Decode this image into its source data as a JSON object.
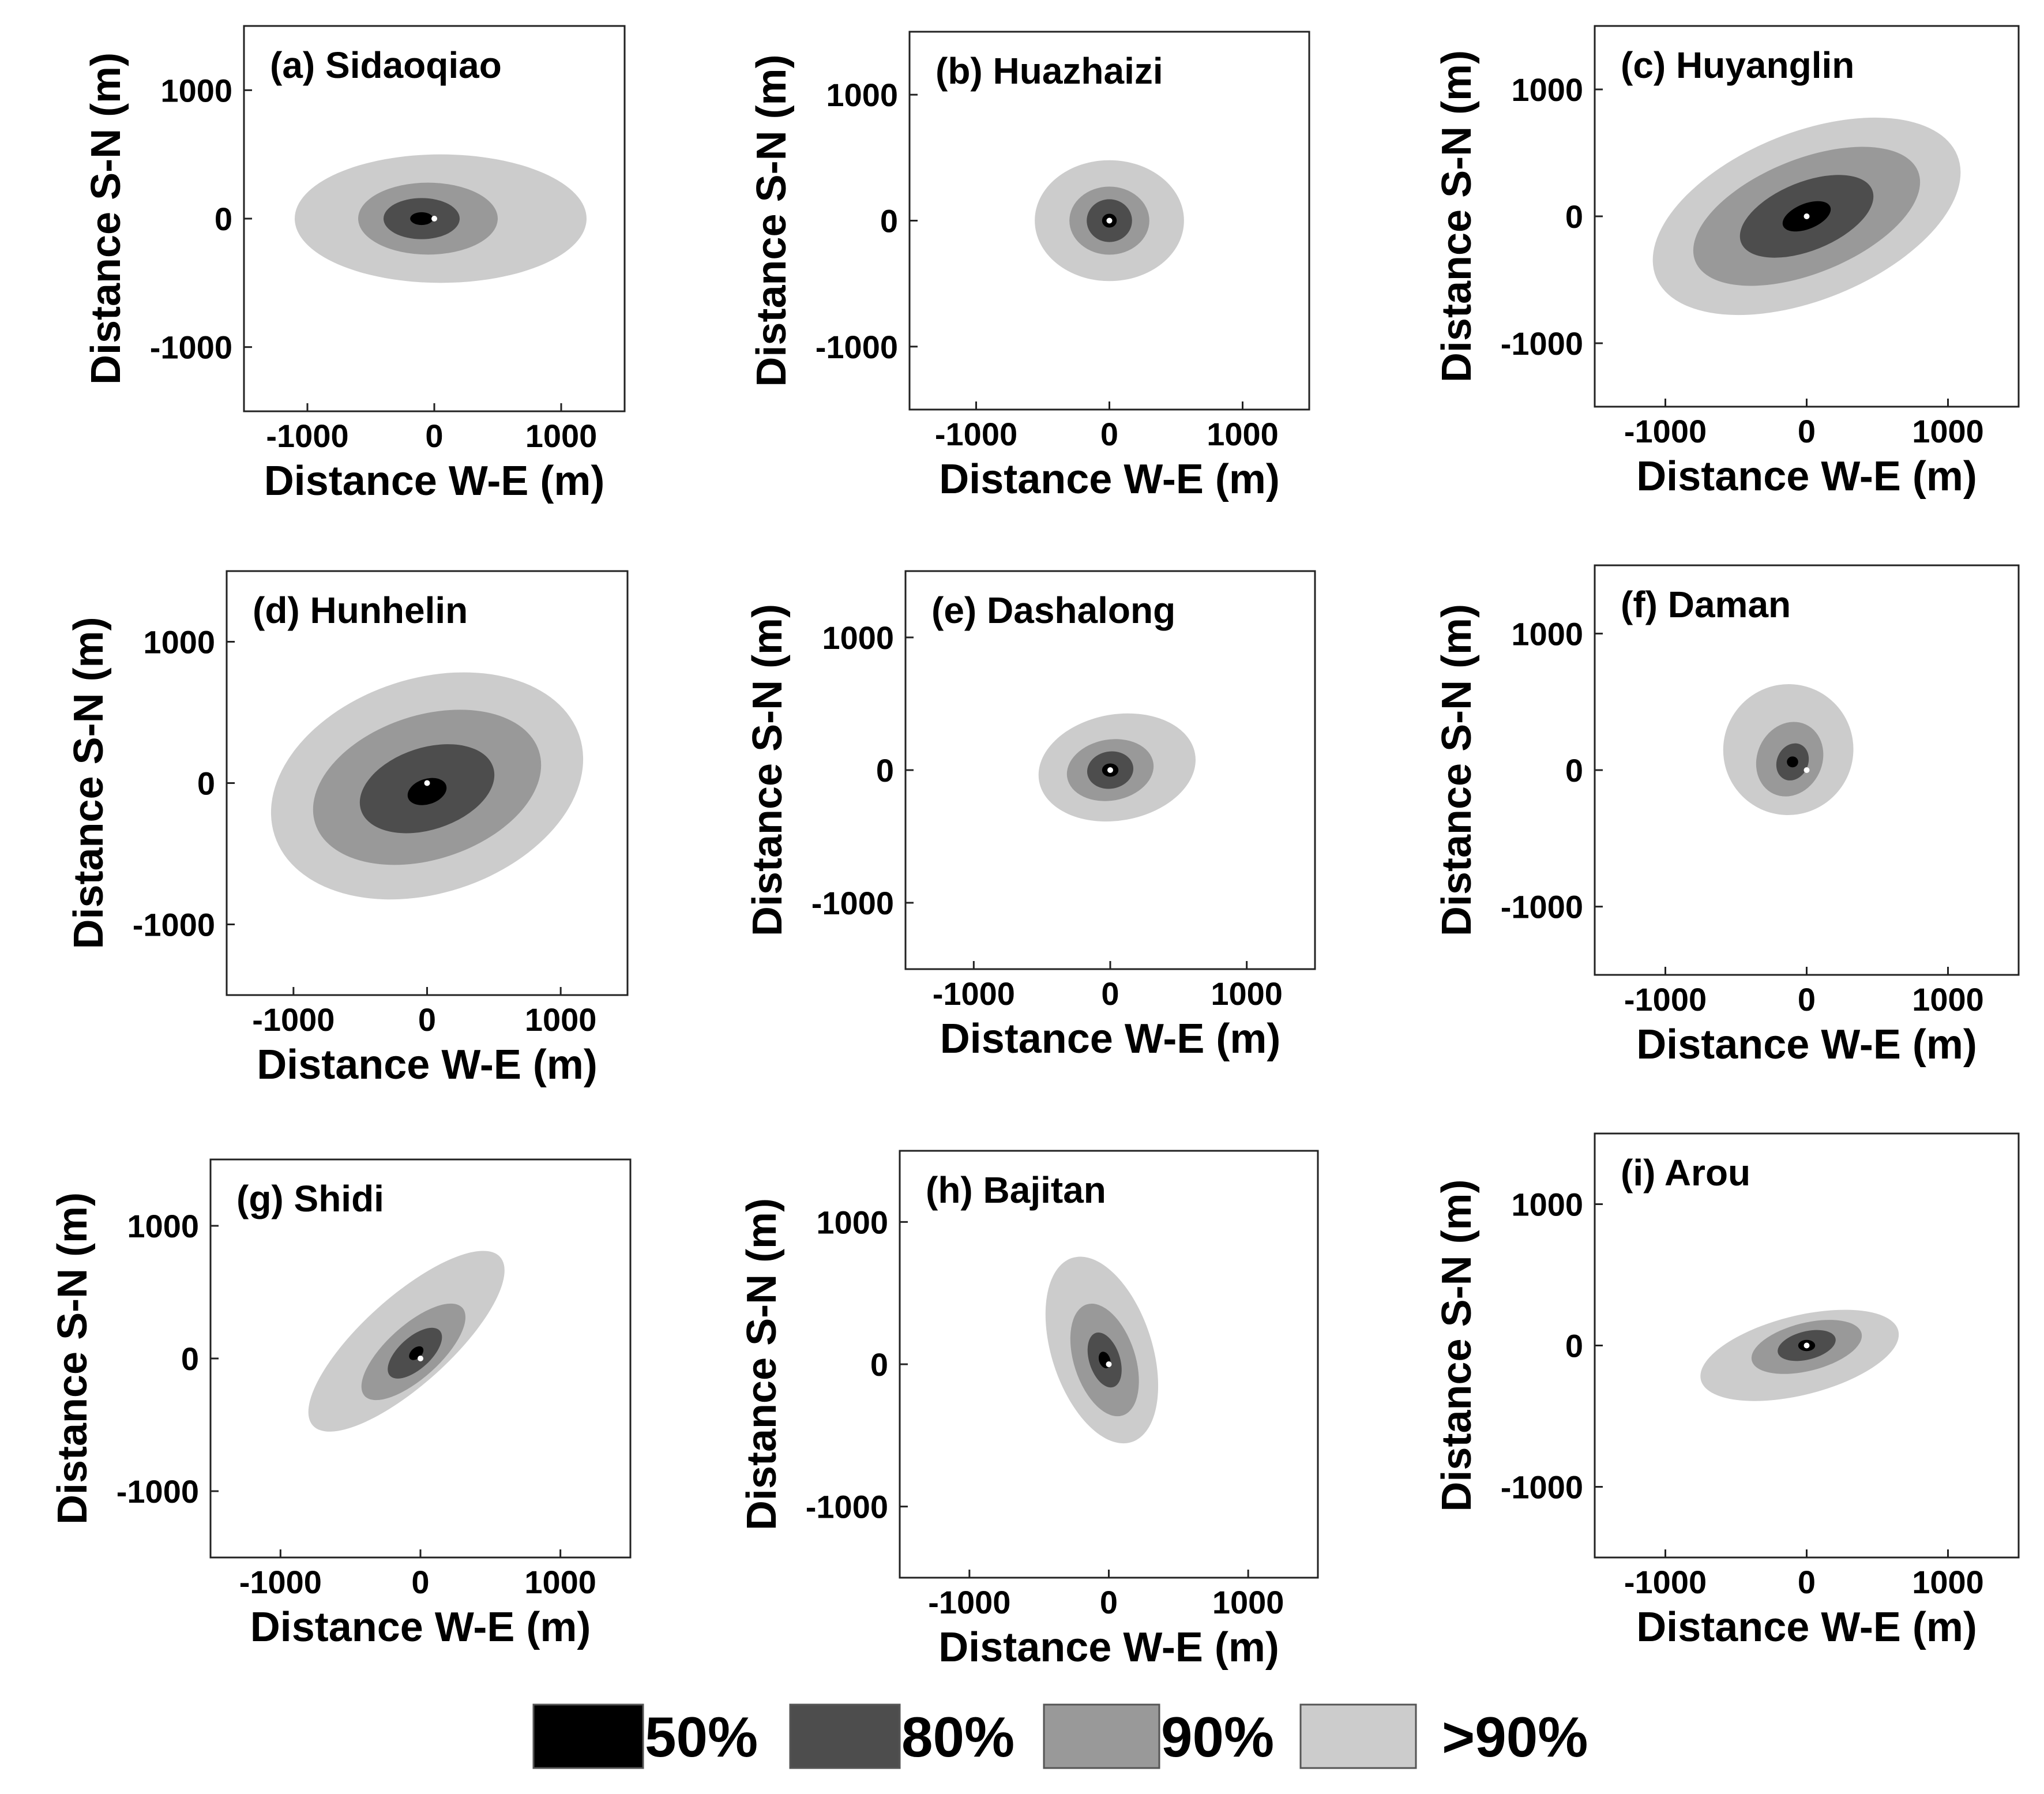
{
  "chart_data": [
    {
      "id": "a",
      "type": "contour",
      "title": "(a) Sidaoqiao",
      "xlabel": "Distance W-E (m)",
      "ylabel": "Distance S-N (m)",
      "xlim": [
        -1500,
        1500
      ],
      "ylim": [
        -1500,
        1500
      ],
      "xticks": [
        -1000,
        0,
        1000
      ],
      "yticks": [
        -1000,
        0,
        1000
      ],
      "levels": [
        {
          "level": ">90%",
          "cx": 50,
          "cy": 0,
          "rx": 1150,
          "ry": 500,
          "angle": 0
        },
        {
          "level": "90%",
          "cx": -50,
          "cy": 0,
          "rx": 550,
          "ry": 280,
          "angle": 0
        },
        {
          "level": "80%",
          "cx": -100,
          "cy": 0,
          "rx": 300,
          "ry": 160,
          "angle": 0
        },
        {
          "level": "50%",
          "cx": -100,
          "cy": 0,
          "rx": 90,
          "ry": 50,
          "angle": 0
        }
      ]
    },
    {
      "id": "b",
      "type": "contour",
      "title": "(b) Huazhaizi",
      "xlabel": "Distance W-E (m)",
      "ylabel": "Distance S-N (m)",
      "xlim": [
        -1500,
        1500
      ],
      "ylim": [
        -1500,
        1500
      ],
      "xticks": [
        -1000,
        0,
        1000
      ],
      "yticks": [
        -1000,
        0,
        1000
      ],
      "levels": [
        {
          "level": ">90%",
          "cx": 0,
          "cy": 0,
          "rx": 560,
          "ry": 480,
          "angle": 0
        },
        {
          "level": "90%",
          "cx": 0,
          "cy": 0,
          "rx": 300,
          "ry": 270,
          "angle": 0
        },
        {
          "level": "80%",
          "cx": 0,
          "cy": 0,
          "rx": 170,
          "ry": 170,
          "angle": 0
        },
        {
          "level": "50%",
          "cx": 0,
          "cy": 0,
          "rx": 55,
          "ry": 55,
          "angle": 0
        }
      ]
    },
    {
      "id": "c",
      "type": "contour",
      "title": "(c) Huyanglin",
      "xlabel": "Distance W-E (m)",
      "ylabel": "Distance S-N (m)",
      "xlim": [
        -1500,
        1500
      ],
      "ylim": [
        -1500,
        1500
      ],
      "xticks": [
        -1000,
        0,
        1000
      ],
      "yticks": [
        -1000,
        0,
        1000
      ],
      "levels": [
        {
          "level": ">90%",
          "cx": 0,
          "cy": 0,
          "rx": 1150,
          "ry": 660,
          "angle": -22
        },
        {
          "level": "90%",
          "cx": 0,
          "cy": 0,
          "rx": 850,
          "ry": 450,
          "angle": -22
        },
        {
          "level": "80%",
          "cx": 0,
          "cy": 0,
          "rx": 500,
          "ry": 270,
          "angle": -22
        },
        {
          "level": "50%",
          "cx": 0,
          "cy": 0,
          "rx": 180,
          "ry": 100,
          "angle": -22
        }
      ]
    },
    {
      "id": "d",
      "type": "contour",
      "title": "(d) Hunhelin",
      "xlabel": "Distance W-E (m)",
      "ylabel": "Distance S-N (m)",
      "xlim": [
        -1500,
        1500
      ],
      "ylim": [
        -1500,
        1500
      ],
      "xticks": [
        -1000,
        0,
        1000
      ],
      "yticks": [
        -1000,
        0,
        1000
      ],
      "levels": [
        {
          "level": ">90%",
          "cx": 0,
          "cy": -20,
          "rx": 1200,
          "ry": 760,
          "angle": -18
        },
        {
          "level": "90%",
          "cx": 0,
          "cy": -30,
          "rx": 880,
          "ry": 510,
          "angle": -18
        },
        {
          "level": "80%",
          "cx": 0,
          "cy": -40,
          "rx": 520,
          "ry": 290,
          "angle": -18
        },
        {
          "level": "50%",
          "cx": 0,
          "cy": -60,
          "rx": 150,
          "ry": 90,
          "angle": -18
        }
      ]
    },
    {
      "id": "e",
      "type": "contour",
      "title": "(e) Dashalong",
      "xlabel": "Distance W-E (m)",
      "ylabel": "Distance S-N (m)",
      "xlim": [
        -1500,
        1500
      ],
      "ylim": [
        -1500,
        1500
      ],
      "xticks": [
        -1000,
        0,
        1000
      ],
      "yticks": [
        -1000,
        0,
        1000
      ],
      "levels": [
        {
          "level": ">90%",
          "cx": 50,
          "cy": 20,
          "rx": 580,
          "ry": 400,
          "angle": -10
        },
        {
          "level": "90%",
          "cx": 0,
          "cy": 0,
          "rx": 320,
          "ry": 230,
          "angle": -10
        },
        {
          "level": "80%",
          "cx": 0,
          "cy": 0,
          "rx": 170,
          "ry": 140,
          "angle": -10
        },
        {
          "level": "50%",
          "cx": 0,
          "cy": 0,
          "rx": 60,
          "ry": 50,
          "angle": 0
        }
      ]
    },
    {
      "id": "f",
      "type": "contour",
      "title": "(f) Daman",
      "xlabel": "Distance W-E (m)",
      "ylabel": "Distance S-N (m)",
      "xlim": [
        -1500,
        1500
      ],
      "ylim": [
        -1500,
        1500
      ],
      "xticks": [
        -1000,
        0,
        1000
      ],
      "yticks": [
        -1000,
        0,
        1000
      ],
      "levels": [
        {
          "level": ">90%",
          "cx": -130,
          "cy": 150,
          "rx": 460,
          "ry": 480,
          "angle": 25
        },
        {
          "level": "90%",
          "cx": -120,
          "cy": 80,
          "rx": 230,
          "ry": 280,
          "angle": 25
        },
        {
          "level": "80%",
          "cx": -100,
          "cy": 60,
          "rx": 110,
          "ry": 140,
          "angle": 25
        },
        {
          "level": "50%",
          "cx": -100,
          "cy": 60,
          "rx": 40,
          "ry": 40,
          "angle": 0
        }
      ]
    },
    {
      "id": "g",
      "type": "contour",
      "title": "(g) Shidi",
      "xlabel": "Distance W-E (m)",
      "ylabel": "Distance S-N (m)",
      "xlim": [
        -1500,
        1500
      ],
      "ylim": [
        -1500,
        1500
      ],
      "xticks": [
        -1000,
        0,
        1000
      ],
      "yticks": [
        -1000,
        0,
        1000
      ],
      "levels": [
        {
          "level": ">90%",
          "cx": -100,
          "cy": 130,
          "rx": 900,
          "ry": 330,
          "angle": -42
        },
        {
          "level": "90%",
          "cx": -50,
          "cy": 50,
          "rx": 470,
          "ry": 200,
          "angle": -42
        },
        {
          "level": "80%",
          "cx": -40,
          "cy": 40,
          "rx": 240,
          "ry": 120,
          "angle": -42
        },
        {
          "level": "50%",
          "cx": -30,
          "cy": 40,
          "rx": 60,
          "ry": 40,
          "angle": -42
        }
      ]
    },
    {
      "id": "h",
      "type": "contour",
      "title": "(h) Bajitan",
      "xlabel": "Distance W-E (m)",
      "ylabel": "Distance S-N (m)",
      "xlim": [
        -1500,
        1500
      ],
      "ylim": [
        -1500,
        1500
      ],
      "xticks": [
        -1000,
        0,
        1000
      ],
      "yticks": [
        -1000,
        0,
        1000
      ],
      "levels": [
        {
          "level": ">90%",
          "cx": -50,
          "cy": 100,
          "rx": 360,
          "ry": 680,
          "angle": -18
        },
        {
          "level": "90%",
          "cx": -30,
          "cy": 30,
          "rx": 220,
          "ry": 410,
          "angle": -18
        },
        {
          "level": "80%",
          "cx": -30,
          "cy": 30,
          "rx": 110,
          "ry": 200,
          "angle": -18
        },
        {
          "level": "50%",
          "cx": -30,
          "cy": 30,
          "rx": 40,
          "ry": 60,
          "angle": -18
        }
      ]
    },
    {
      "id": "i",
      "type": "contour",
      "title": "(i) Arou",
      "xlabel": "Distance W-E (m)",
      "ylabel": "Distance S-N (m)",
      "xlim": [
        -1500,
        1500
      ],
      "ylim": [
        -1500,
        1500
      ],
      "xticks": [
        -1000,
        0,
        1000
      ],
      "yticks": [
        -1000,
        0,
        1000
      ],
      "levels": [
        {
          "level": ">90%",
          "cx": -50,
          "cy": -70,
          "rx": 720,
          "ry": 280,
          "angle": -14
        },
        {
          "level": "90%",
          "cx": 0,
          "cy": -10,
          "rx": 400,
          "ry": 170,
          "angle": -14
        },
        {
          "level": "80%",
          "cx": 0,
          "cy": 0,
          "rx": 210,
          "ry": 100,
          "angle": -14
        },
        {
          "level": "50%",
          "cx": 0,
          "cy": 0,
          "rx": 60,
          "ry": 40,
          "angle": 0
        }
      ]
    }
  ],
  "legend": {
    "items": [
      {
        "label": "50%",
        "color": "#000000"
      },
      {
        "label": "80%",
        "color": "#4d4d4d"
      },
      {
        "label": "90%",
        "color": "#999999"
      },
      {
        "label": ">90%",
        "color": "#cccccc"
      }
    ]
  }
}
